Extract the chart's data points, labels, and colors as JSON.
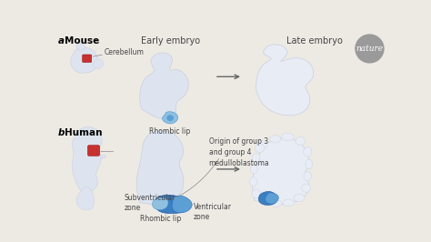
{
  "bg_color": "#edeae4",
  "label_a": "a",
  "label_b": "b",
  "label_mouse": "Mouse",
  "label_human": "Human",
  "label_early_embryo": "Early embryo",
  "label_late_embryo": "Late embryo",
  "label_cerebellum": "Cerebellum",
  "label_rhombic_lip_a": "Rhombic lip",
  "label_rhombic_lip_b": "Rhombic lip",
  "label_subventricular": "Subventricular\nzone",
  "label_ventricular": "Ventricular\nzone",
  "label_origin": "Origin of group 3\nand group 4\nmedulloblastoma",
  "nature_text": "nature",
  "shape_fill": "#dde4ef",
  "shape_fill2": "#e8ecf4",
  "shape_edge": "#c8d0de",
  "blue_dark": "#3a7fc1",
  "blue_mid": "#5b9fd4",
  "blue_light": "#8fc0e0",
  "red_fill": "#c83030",
  "nature_gray": "#9a9a9a",
  "text_color": "#444444",
  "arrow_color": "#666666",
  "line_color": "#888888"
}
